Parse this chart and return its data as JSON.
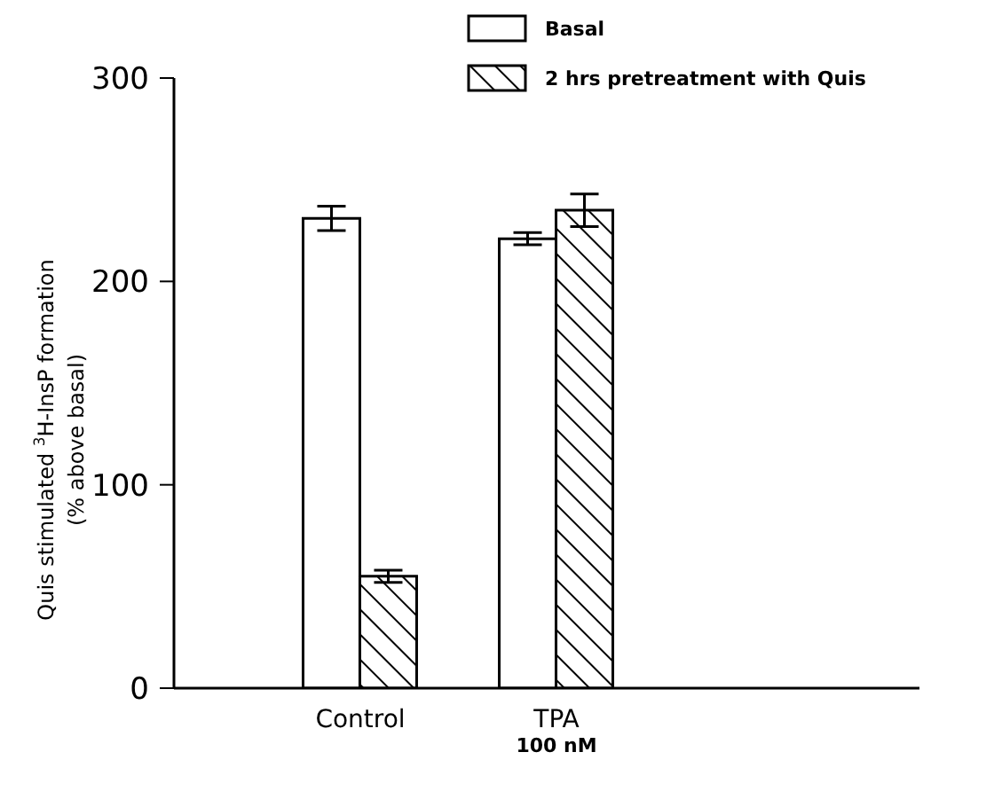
{
  "chart_data": {
    "type": "bar",
    "ylabel": "Quis stimulated $^{3}$H-InsP formation\n(% above basal)",
    "categories": [
      "Control",
      "TPA\n100 nM"
    ],
    "series": [
      {
        "name": "Basal",
        "color": "#ffffff",
        "values": [
          231,
          221
        ],
        "errors": [
          6,
          3
        ]
      },
      {
        "name": "2 hrs pretreatment with Quis",
        "color": "#000000",
        "values": [
          55,
          235
        ],
        "errors": [
          3,
          8
        ]
      }
    ],
    "ylim": [
      0,
      300
    ],
    "yticks": [
      0,
      100,
      200,
      300
    ],
    "legend": "top right"
  }
}
